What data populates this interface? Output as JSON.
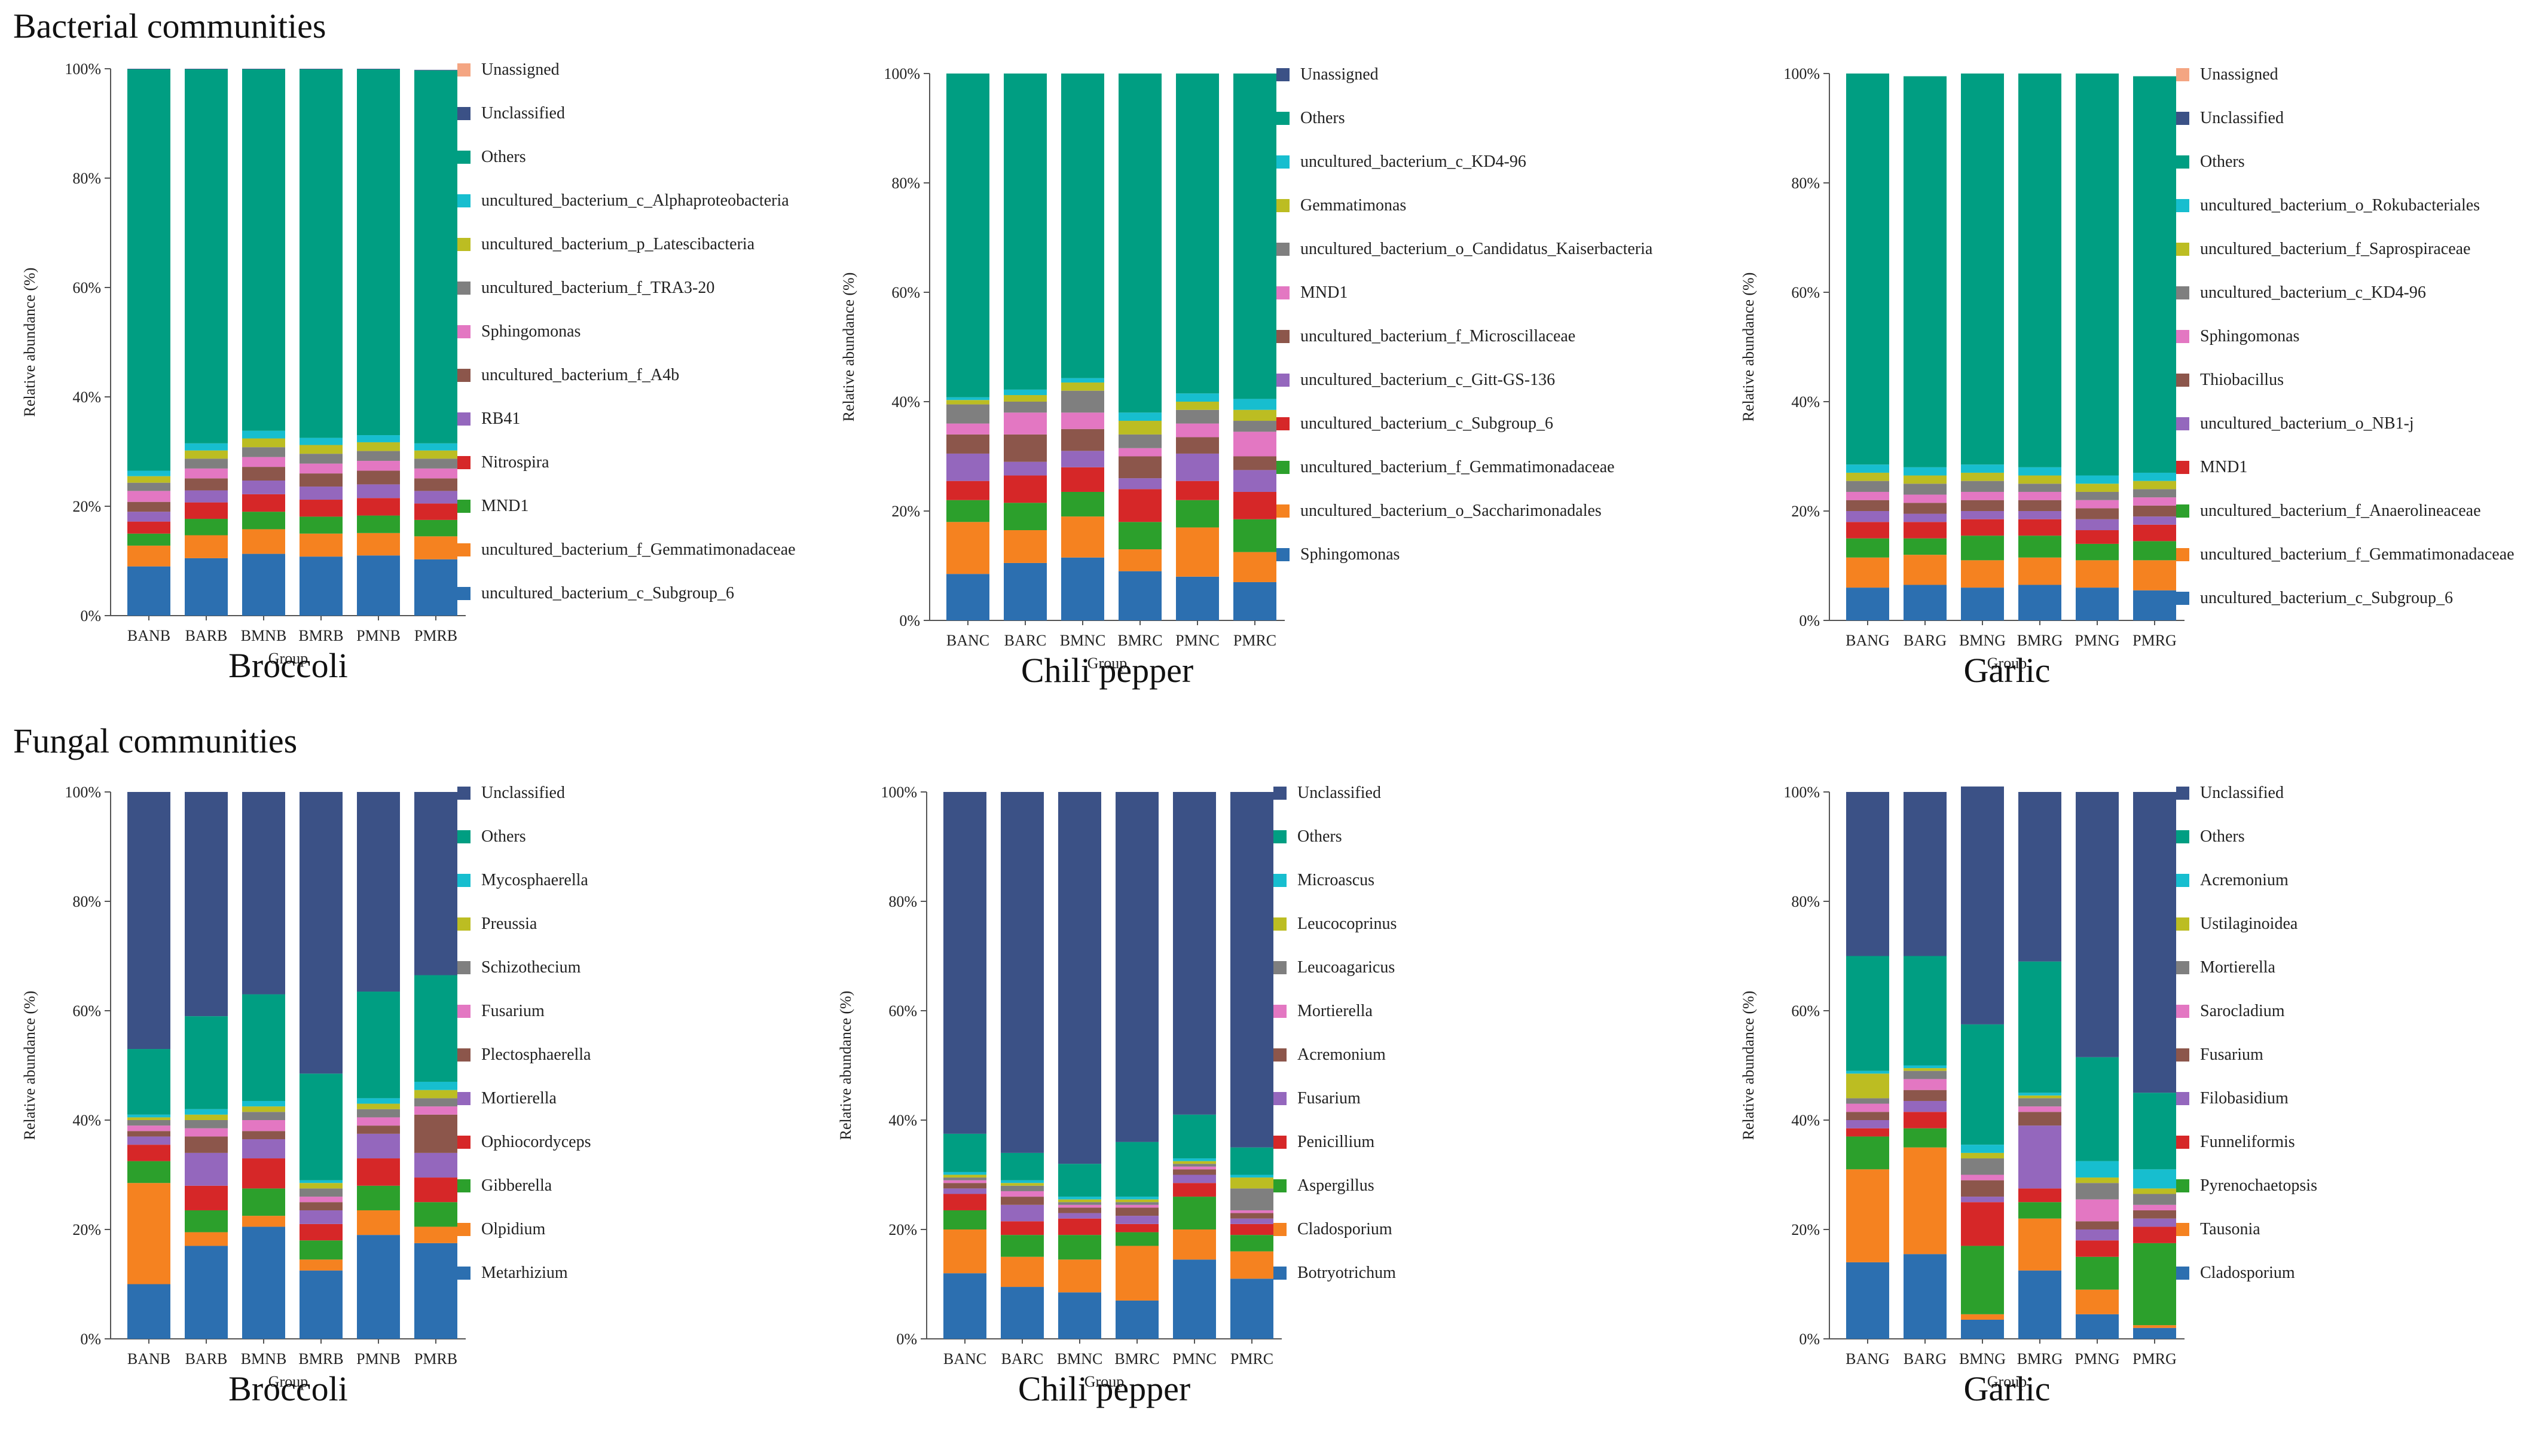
{
  "section_titles": {
    "bacterial": "Bacterial communities",
    "fungal": "Fungal communities"
  },
  "chart_data": [
    {
      "type": "bar",
      "stacked": true,
      "title": "Broccoli",
      "community": "Bacterial communities",
      "xlabel": "Group",
      "ylabel": "Relative abundance (%)",
      "ylim": [
        0,
        100
      ],
      "yticks": [
        "0%",
        "20%",
        "40%",
        "60%",
        "80%",
        "100%"
      ],
      "categories": [
        "BANB",
        "BARB",
        "BMNB",
        "BMRB",
        "PMNB",
        "PMRB"
      ],
      "series": [
        {
          "name": "uncultured_bacterium_c_Subgroup_6",
          "color": "#2c6fb0",
          "values": [
            9,
            10.5,
            11.3,
            10.8,
            11,
            10.3
          ]
        },
        {
          "name": "uncultured_bacterium_f_Gemmatimonadaceae",
          "color": "#f58220",
          "values": [
            3.8,
            4.2,
            4.5,
            4.2,
            4.1,
            4.2
          ]
        },
        {
          "name": "MND1",
          "color": "#2ca02c",
          "values": [
            2.2,
            3,
            3.2,
            3.1,
            3.2,
            3
          ]
        },
        {
          "name": "Nitrospira",
          "color": "#d62728",
          "values": [
            2.2,
            3,
            3.2,
            3.1,
            3.2,
            3
          ]
        },
        {
          "name": "RB41",
          "color": "#9467bd",
          "values": [
            1.8,
            2.2,
            2.5,
            2.4,
            2.5,
            2.3
          ]
        },
        {
          "name": "uncultured_bacterium_f_A4b",
          "color": "#8c564b",
          "values": [
            1.8,
            2.2,
            2.5,
            2.4,
            2.5,
            2.3
          ]
        },
        {
          "name": "Sphingomonas",
          "color": "#e377c2",
          "values": [
            2,
            1.8,
            1.8,
            1.8,
            1.8,
            1.8
          ]
        },
        {
          "name": "uncultured_bacterium_f_TRA3-20",
          "color": "#7f7f7f",
          "values": [
            1.5,
            1.8,
            1.8,
            1.8,
            1.8,
            1.8
          ]
        },
        {
          "name": "uncultured_bacterium_p_Latescibacteria",
          "color": "#bcbd22",
          "values": [
            1.2,
            1.5,
            1.6,
            1.6,
            1.6,
            1.5
          ]
        },
        {
          "name": "uncultured_bacterium_c_Alphaproteobacteria",
          "color": "#17becf",
          "values": [
            1,
            1.3,
            1.4,
            1.3,
            1.3,
            1.3
          ]
        },
        {
          "name": "Others",
          "color": "#009e82",
          "values": [
            73.4,
            68.4,
            66.1,
            67.4,
            66.9,
            68.2
          ]
        },
        {
          "name": "Unclassified",
          "color": "#3b5186",
          "values": [
            0.1,
            0.1,
            0.1,
            0.1,
            0.1,
            0.1
          ]
        },
        {
          "name": "Unassigned",
          "color": "#f4a582",
          "values": [
            0,
            0,
            0,
            0,
            0,
            0
          ]
        }
      ]
    },
    {
      "type": "bar",
      "stacked": true,
      "title": "Chili pepper",
      "community": "Bacterial communities",
      "xlabel": "Group",
      "ylabel": "Relative abundance (%)",
      "ylim": [
        0,
        100
      ],
      "yticks": [
        "0%",
        "20%",
        "40%",
        "60%",
        "80%",
        "100%"
      ],
      "categories": [
        "BANC",
        "BARC",
        "BMNC",
        "BMRC",
        "PMNC",
        "PMRC"
      ],
      "series": [
        {
          "name": "Sphingomonas",
          "color": "#2c6fb0",
          "values": [
            8.5,
            10.5,
            11.5,
            9,
            8,
            7
          ]
        },
        {
          "name": "uncultured_bacterium_o_Saccharimonadales",
          "color": "#f58220",
          "values": [
            9.5,
            6,
            7.5,
            4,
            9,
            5.5
          ]
        },
        {
          "name": "uncultured_bacterium_f_Gemmatimonadaceae",
          "color": "#2ca02c",
          "values": [
            4,
            5,
            4.5,
            5,
            5,
            6
          ]
        },
        {
          "name": "uncultured_bacterium_c_Subgroup_6",
          "color": "#d62728",
          "values": [
            3.5,
            5,
            4.5,
            6,
            3.5,
            5
          ]
        },
        {
          "name": "uncultured_bacterium_c_Gitt-GS-136",
          "color": "#9467bd",
          "values": [
            5,
            2.5,
            3,
            2,
            5,
            4
          ]
        },
        {
          "name": "uncultured_bacterium_f_Microscillaceae",
          "color": "#8c564b",
          "values": [
            3.5,
            5,
            4,
            4,
            3,
            2.5
          ]
        },
        {
          "name": "MND1",
          "color": "#e377c2",
          "values": [
            2,
            4,
            3,
            1.5,
            2.5,
            4.5
          ]
        },
        {
          "name": "uncultured_bacterium_o_Candidatus_Kaiserbacteria",
          "color": "#7f7f7f",
          "values": [
            3.5,
            2,
            4,
            2.5,
            2.5,
            2
          ]
        },
        {
          "name": "Gemmatimonas",
          "color": "#bcbd22",
          "values": [
            0.8,
            1.2,
            1.5,
            2.5,
            1.5,
            2
          ]
        },
        {
          "name": "uncultured_bacterium_c_KD4-96",
          "color": "#17becf",
          "values": [
            0.5,
            1,
            0.8,
            1.5,
            1.5,
            2
          ]
        },
        {
          "name": "Others",
          "color": "#009e82",
          "values": [
            59.2,
            57.8,
            55.7,
            62,
            58.5,
            59.5
          ]
        },
        {
          "name": "Unassigned",
          "color": "#3b5186",
          "values": [
            0,
            0,
            0,
            0,
            0,
            0
          ]
        }
      ]
    },
    {
      "type": "bar",
      "stacked": true,
      "title": "Garlic",
      "community": "Bacterial communities",
      "xlabel": "Group",
      "ylabel": "Relative abundance (%)",
      "ylim": [
        0,
        100
      ],
      "yticks": [
        "0%",
        "20%",
        "40%",
        "60%",
        "80%",
        "100%"
      ],
      "categories": [
        "BANG",
        "BARG",
        "BMNG",
        "BMRG",
        "PMNG",
        "PMRG"
      ],
      "series": [
        {
          "name": "uncultured_bacterium_c_Subgroup_6",
          "color": "#2c6fb0",
          "values": [
            6,
            6.5,
            6,
            6.5,
            6,
            5.5
          ]
        },
        {
          "name": "uncultured_bacterium_f_Gemmatimonadaceae",
          "color": "#f58220",
          "values": [
            5.5,
            5.5,
            5,
            5,
            5,
            5.5
          ]
        },
        {
          "name": "uncultured_bacterium_f_Anaerolineaceae",
          "color": "#2ca02c",
          "values": [
            3.5,
            3,
            4.5,
            4,
            3,
            3.5
          ]
        },
        {
          "name": "MND1",
          "color": "#d62728",
          "values": [
            3,
            3,
            3,
            3,
            2.5,
            3
          ]
        },
        {
          "name": "uncultured_bacterium_o_NB1-j",
          "color": "#9467bd",
          "values": [
            2,
            1.5,
            1.5,
            1.5,
            2,
            1.5
          ]
        },
        {
          "name": "Thiobacillus",
          "color": "#8c564b",
          "values": [
            2,
            2,
            2,
            2,
            2,
            2
          ]
        },
        {
          "name": "Sphingomonas",
          "color": "#e377c2",
          "values": [
            1.5,
            1.5,
            1.5,
            1.5,
            1.5,
            1.5
          ]
        },
        {
          "name": "uncultured_bacterium_c_KD4-96",
          "color": "#7f7f7f",
          "values": [
            2,
            2,
            2,
            1.5,
            1.5,
            1.5
          ]
        },
        {
          "name": "uncultured_bacterium_f_Saprospiraceae",
          "color": "#bcbd22",
          "values": [
            1.5,
            1.5,
            1.5,
            1.5,
            1.5,
            1.5
          ]
        },
        {
          "name": "uncultured_bacterium_o_Rokubacteriales",
          "color": "#17becf",
          "values": [
            1.5,
            1.5,
            1.5,
            1.5,
            1.5,
            1.5
          ]
        },
        {
          "name": "Others",
          "color": "#009e82",
          "values": [
            71.5,
            71.5,
            71.5,
            72,
            73.5,
            72.5
          ]
        },
        {
          "name": "Unclassified",
          "color": "#3b5186",
          "values": [
            0,
            0,
            0,
            0,
            0,
            0
          ]
        },
        {
          "name": "Unassigned",
          "color": "#f4a582",
          "values": [
            0,
            0,
            0,
            0,
            0,
            0
          ]
        }
      ]
    },
    {
      "type": "bar",
      "stacked": true,
      "title": "Broccoli",
      "community": "Fungal communities",
      "xlabel": "Group",
      "ylabel": "Relative abundance (%)",
      "ylim": [
        0,
        100
      ],
      "yticks": [
        "0%",
        "20%",
        "40%",
        "60%",
        "80%",
        "100%"
      ],
      "categories": [
        "BANB",
        "BARB",
        "BMNB",
        "BMRB",
        "PMNB",
        "PMRB"
      ],
      "series": [
        {
          "name": "Metarhizium",
          "color": "#2c6fb0",
          "values": [
            10,
            17,
            20.5,
            12.5,
            19,
            17.5
          ]
        },
        {
          "name": "Olpidium",
          "color": "#f58220",
          "values": [
            18.5,
            2.5,
            2,
            2,
            4.5,
            3
          ]
        },
        {
          "name": "Gibberella",
          "color": "#2ca02c",
          "values": [
            4,
            4,
            5,
            3.5,
            4.5,
            4.5
          ]
        },
        {
          "name": "Ophiocordyceps",
          "color": "#d62728",
          "values": [
            3,
            4.5,
            5.5,
            3,
            5,
            4.5
          ]
        },
        {
          "name": "Mortierella",
          "color": "#9467bd",
          "values": [
            1.5,
            6,
            3.5,
            2.5,
            4.5,
            4.5
          ]
        },
        {
          "name": "Plectosphaerella",
          "color": "#8c564b",
          "values": [
            1,
            3,
            1.5,
            1.5,
            1.5,
            7
          ]
        },
        {
          "name": "Fusarium",
          "color": "#e377c2",
          "values": [
            1,
            1.5,
            2,
            1,
            1.5,
            1.5
          ]
        },
        {
          "name": "Schizothecium",
          "color": "#7f7f7f",
          "values": [
            1,
            1.5,
            1.5,
            1.5,
            1.5,
            1.5
          ]
        },
        {
          "name": "Preussia",
          "color": "#bcbd22",
          "values": [
            0.5,
            1,
            1,
            1,
            1,
            1.5
          ]
        },
        {
          "name": "Mycosphaerella",
          "color": "#17becf",
          "values": [
            0.5,
            1,
            1,
            0.5,
            1,
            1.5
          ]
        },
        {
          "name": "Others",
          "color": "#009e82",
          "values": [
            12,
            17,
            19.5,
            19.5,
            19.5,
            19.5
          ]
        },
        {
          "name": "Unclassified",
          "color": "#3b5186",
          "values": [
            47,
            41,
            37,
            51.5,
            36.5,
            33.5
          ]
        }
      ]
    },
    {
      "type": "bar",
      "stacked": true,
      "title": "Chili pepper",
      "community": "Fungal communities",
      "xlabel": "Group",
      "ylabel": "Relative abundance (%)",
      "ylim": [
        0,
        100
      ],
      "yticks": [
        "0%",
        "20%",
        "40%",
        "60%",
        "80%",
        "100%"
      ],
      "categories": [
        "BANC",
        "BARC",
        "BMNC",
        "BMRC",
        "PMNC",
        "PMRC"
      ],
      "series": [
        {
          "name": "Botryotrichum",
          "color": "#2c6fb0",
          "values": [
            12,
            9.5,
            8.5,
            7,
            14.5,
            11
          ]
        },
        {
          "name": "Cladosporium",
          "color": "#f58220",
          "values": [
            8,
            5.5,
            6,
            10,
            5.5,
            5
          ]
        },
        {
          "name": "Aspergillus",
          "color": "#2ca02c",
          "values": [
            3.5,
            4,
            4.5,
            2.5,
            6,
            3
          ]
        },
        {
          "name": "Penicillium",
          "color": "#d62728",
          "values": [
            3,
            2.5,
            3,
            1.5,
            2.5,
            2
          ]
        },
        {
          "name": "Fusarium",
          "color": "#9467bd",
          "values": [
            1,
            3,
            1,
            1.5,
            1.5,
            1
          ]
        },
        {
          "name": "Acremonium",
          "color": "#8c564b",
          "values": [
            1,
            1.5,
            1,
            1.5,
            1,
            1
          ]
        },
        {
          "name": "Mortierella",
          "color": "#e377c2",
          "values": [
            0.5,
            1,
            0.5,
            0.5,
            0.5,
            0.5
          ]
        },
        {
          "name": "Leucoagaricus",
          "color": "#7f7f7f",
          "values": [
            0.5,
            1,
            0.5,
            0.5,
            0.5,
            4
          ]
        },
        {
          "name": "Leucocoprinus",
          "color": "#bcbd22",
          "values": [
            0.5,
            0.5,
            0.5,
            0.5,
            0.5,
            2
          ]
        },
        {
          "name": "Microascus",
          "color": "#17becf",
          "values": [
            0.5,
            0.5,
            0.5,
            0.5,
            0.5,
            0.5
          ]
        },
        {
          "name": "Others",
          "color": "#009e82",
          "values": [
            7,
            5,
            6,
            10,
            8,
            5
          ]
        },
        {
          "name": "Unclassified",
          "color": "#3b5186",
          "values": [
            62.5,
            66,
            68,
            64,
            59,
            65
          ]
        }
      ]
    },
    {
      "type": "bar",
      "stacked": true,
      "title": "Garlic",
      "community": "Fungal communities",
      "xlabel": "Group",
      "ylabel": "Relative abundance (%)",
      "ylim": [
        0,
        100
      ],
      "yticks": [
        "0%",
        "20%",
        "40%",
        "60%",
        "80%",
        "100%"
      ],
      "categories": [
        "BANG",
        "BARG",
        "BMNG",
        "BMRG",
        "PMNG",
        "PMRG"
      ],
      "series": [
        {
          "name": "Cladosporium",
          "color": "#2c6fb0",
          "values": [
            14,
            15.5,
            3.5,
            12.5,
            4.5,
            2
          ]
        },
        {
          "name": "Tausonia",
          "color": "#f58220",
          "values": [
            17,
            19.5,
            1,
            9.5,
            4.5,
            0.5
          ]
        },
        {
          "name": "Pyrenochaetopsis",
          "color": "#2ca02c",
          "values": [
            6,
            3.5,
            12.5,
            3,
            6,
            15
          ]
        },
        {
          "name": "Funneliformis",
          "color": "#d62728",
          "values": [
            1.5,
            3,
            8,
            2.5,
            3,
            3
          ]
        },
        {
          "name": "Filobasidium",
          "color": "#9467bd",
          "values": [
            1.5,
            2,
            1,
            11.5,
            2,
            1.5
          ]
        },
        {
          "name": "Fusarium",
          "color": "#8c564b",
          "values": [
            1.5,
            2,
            3,
            2.5,
            1.5,
            1.5
          ]
        },
        {
          "name": "Sarocladium",
          "color": "#e377c2",
          "values": [
            1.5,
            2,
            1,
            1,
            4,
            1
          ]
        },
        {
          "name": "Mortierella",
          "color": "#7f7f7f",
          "values": [
            1,
            1.5,
            3,
            1.5,
            3,
            2
          ]
        },
        {
          "name": "Ustilaginoidea",
          "color": "#bcbd22",
          "values": [
            4.5,
            0.5,
            1,
            0.5,
            1,
            1
          ]
        },
        {
          "name": "Acremonium",
          "color": "#17becf",
          "values": [
            0.5,
            0.5,
            1.5,
            0.5,
            3,
            3.5
          ]
        },
        {
          "name": "Others",
          "color": "#009e82",
          "values": [
            21,
            20,
            22,
            24,
            19,
            14
          ]
        },
        {
          "name": "Unclassified",
          "color": "#3b5186",
          "values": [
            30,
            30,
            43.5,
            31,
            48.5,
            55
          ]
        }
      ]
    }
  ]
}
